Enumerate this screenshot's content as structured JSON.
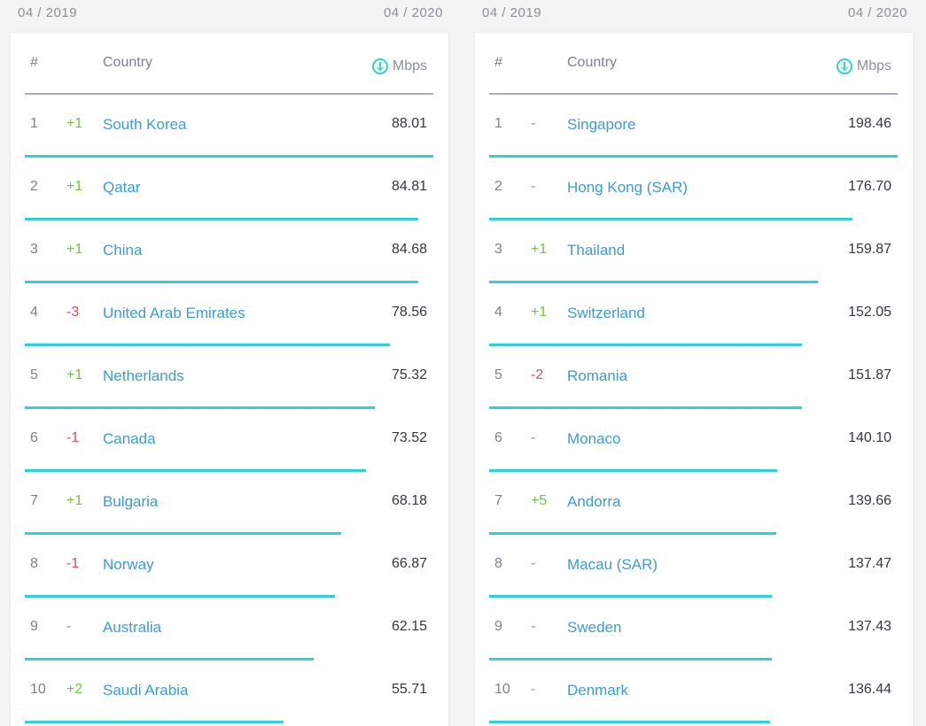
{
  "colors": {
    "up": "#6cc73a",
    "down": "#e34a57",
    "neutral": "#8a8f99",
    "country_link": "#3a9bdc",
    "bar": "#2ed0da",
    "icon": "#2ed4c9"
  },
  "panels": [
    {
      "date_start": "04 / 2019",
      "date_end": "04 / 2020",
      "header": {
        "rank": "#",
        "country": "Country",
        "unit": "Mbps",
        "unit_icon": "download-arrow-icon"
      },
      "max_speed": 88.01,
      "rows": [
        {
          "rank": "1",
          "change": "+1",
          "country": "South Korea",
          "speed": "88.01"
        },
        {
          "rank": "2",
          "change": "+1",
          "country": "Qatar",
          "speed": "84.81"
        },
        {
          "rank": "3",
          "change": "+1",
          "country": "China",
          "speed": "84.68"
        },
        {
          "rank": "4",
          "change": "-3",
          "country": "United Arab Emirates",
          "speed": "78.56"
        },
        {
          "rank": "5",
          "change": "+1",
          "country": "Netherlands",
          "speed": "75.32"
        },
        {
          "rank": "6",
          "change": "-1",
          "country": "Canada",
          "speed": "73.52"
        },
        {
          "rank": "7",
          "change": "+1",
          "country": "Bulgaria",
          "speed": "68.18"
        },
        {
          "rank": "8",
          "change": "-1",
          "country": "Norway",
          "speed": "66.87"
        },
        {
          "rank": "9",
          "change": "-",
          "country": "Australia",
          "speed": "62.15"
        },
        {
          "rank": "10",
          "change": "+2",
          "country": "Saudi Arabia",
          "speed": "55.71"
        }
      ]
    },
    {
      "date_start": "04 / 2019",
      "date_end": "04 / 2020",
      "header": {
        "rank": "#",
        "country": "Country",
        "unit": "Mbps",
        "unit_icon": "download-arrow-icon"
      },
      "max_speed": 198.46,
      "rows": [
        {
          "rank": "1",
          "change": "-",
          "country": "Singapore",
          "speed": "198.46"
        },
        {
          "rank": "2",
          "change": "-",
          "country": "Hong Kong (SAR)",
          "speed": "176.70"
        },
        {
          "rank": "3",
          "change": "+1",
          "country": "Thailand",
          "speed": "159.87"
        },
        {
          "rank": "4",
          "change": "+1",
          "country": "Switzerland",
          "speed": "152.05"
        },
        {
          "rank": "5",
          "change": "-2",
          "country": "Romania",
          "speed": "151.87"
        },
        {
          "rank": "6",
          "change": "-",
          "country": "Monaco",
          "speed": "140.10"
        },
        {
          "rank": "7",
          "change": "+5",
          "country": "Andorra",
          "speed": "139.66"
        },
        {
          "rank": "8",
          "change": "-",
          "country": "Macau (SAR)",
          "speed": "137.47"
        },
        {
          "rank": "9",
          "change": "-",
          "country": "Sweden",
          "speed": "137.43"
        },
        {
          "rank": "10",
          "change": "-",
          "country": "Denmark",
          "speed": "136.44"
        }
      ]
    }
  ]
}
